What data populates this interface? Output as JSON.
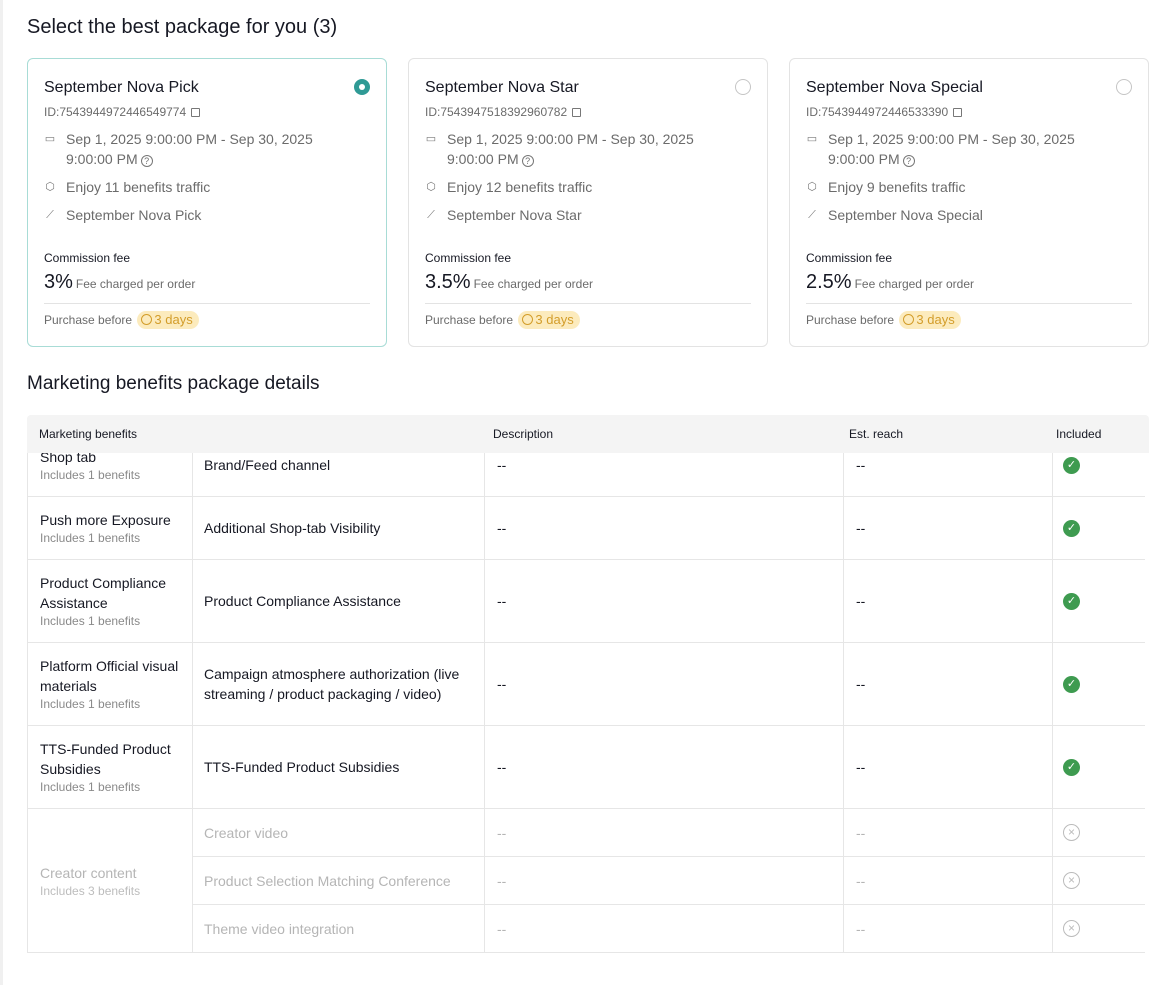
{
  "page": {
    "title": "Select the best package for you (3)",
    "details_title": "Marketing benefits package details"
  },
  "packages": [
    {
      "name": "September Nova Pick",
      "id": "ID:7543944972446549774",
      "period": "Sep 1, 2025 9:00:00 PM - Sep 30, 2025 9:00:00 PM",
      "benefits": "Enjoy 11 benefits traffic",
      "campaign": "September Nova Pick",
      "commission_label": "Commission fee",
      "fee": "3%",
      "fee_note": "Fee charged per order",
      "purchase_label": "Purchase before",
      "deadline": "3 days",
      "selected": true
    },
    {
      "name": "September Nova Star",
      "id": "ID:7543947518392960782",
      "period": "Sep 1, 2025 9:00:00 PM - Sep 30, 2025 9:00:00 PM",
      "benefits": "Enjoy 12 benefits traffic",
      "campaign": "September Nova Star",
      "commission_label": "Commission fee",
      "fee": "3.5%",
      "fee_note": "Fee charged per order",
      "purchase_label": "Purchase before",
      "deadline": "3 days",
      "selected": false
    },
    {
      "name": "September Nova Special",
      "id": "ID:7543944972446533390",
      "period": "Sep 1, 2025 9:00:00 PM - Sep 30, 2025 9:00:00 PM",
      "benefits": "Enjoy 9 benefits traffic",
      "campaign": "September Nova Special",
      "commission_label": "Commission fee",
      "fee": "2.5%",
      "fee_note": "Fee charged per order",
      "purchase_label": "Purchase before",
      "deadline": "3 days",
      "selected": false
    }
  ],
  "table": {
    "headers": [
      "Marketing benefits",
      "Description",
      "Est. reach",
      "Included"
    ],
    "groups": [
      {
        "name": "Shop tab",
        "count": "Includes 1 benefits",
        "items": [
          {
            "benefit": "Brand/Feed channel",
            "description": "--",
            "reach": "--",
            "included": true
          }
        ]
      },
      {
        "name": "Push more Exposure",
        "count": "Includes 1 benefits",
        "items": [
          {
            "benefit": "Additional Shop-tab Visibility",
            "description": "--",
            "reach": "--",
            "included": true
          }
        ]
      },
      {
        "name": "Product Compliance Assistance",
        "count": "Includes 1 benefits",
        "items": [
          {
            "benefit": "Product Compliance Assistance",
            "description": "--",
            "reach": "--",
            "included": true
          }
        ]
      },
      {
        "name": "Platform Official visual materials",
        "count": "Includes 1 benefits",
        "items": [
          {
            "benefit": "Campaign atmosphere authorization (live streaming / product packaging / video)",
            "description": "--",
            "reach": "--",
            "included": true
          }
        ]
      },
      {
        "name": "TTS-Funded Product Subsidies",
        "count": "Includes 1 benefits",
        "items": [
          {
            "benefit": "TTS-Funded Product Subsidies",
            "description": "--",
            "reach": "--",
            "included": true
          }
        ]
      },
      {
        "name": "Creator content",
        "count": "Includes 3 benefits",
        "items": [
          {
            "benefit": "Creator video",
            "description": "--",
            "reach": "--",
            "included": false
          },
          {
            "benefit": "Product Selection Matching Conference",
            "description": "--",
            "reach": "--",
            "included": false
          },
          {
            "benefit": "Theme video integration",
            "description": "--",
            "reach": "--",
            "included": false
          }
        ]
      }
    ]
  },
  "colors": {
    "accent": "#2f9a95",
    "included": "#3e9b50",
    "badge_bg": "#fcebbd",
    "badge_text": "#d39d2a"
  }
}
